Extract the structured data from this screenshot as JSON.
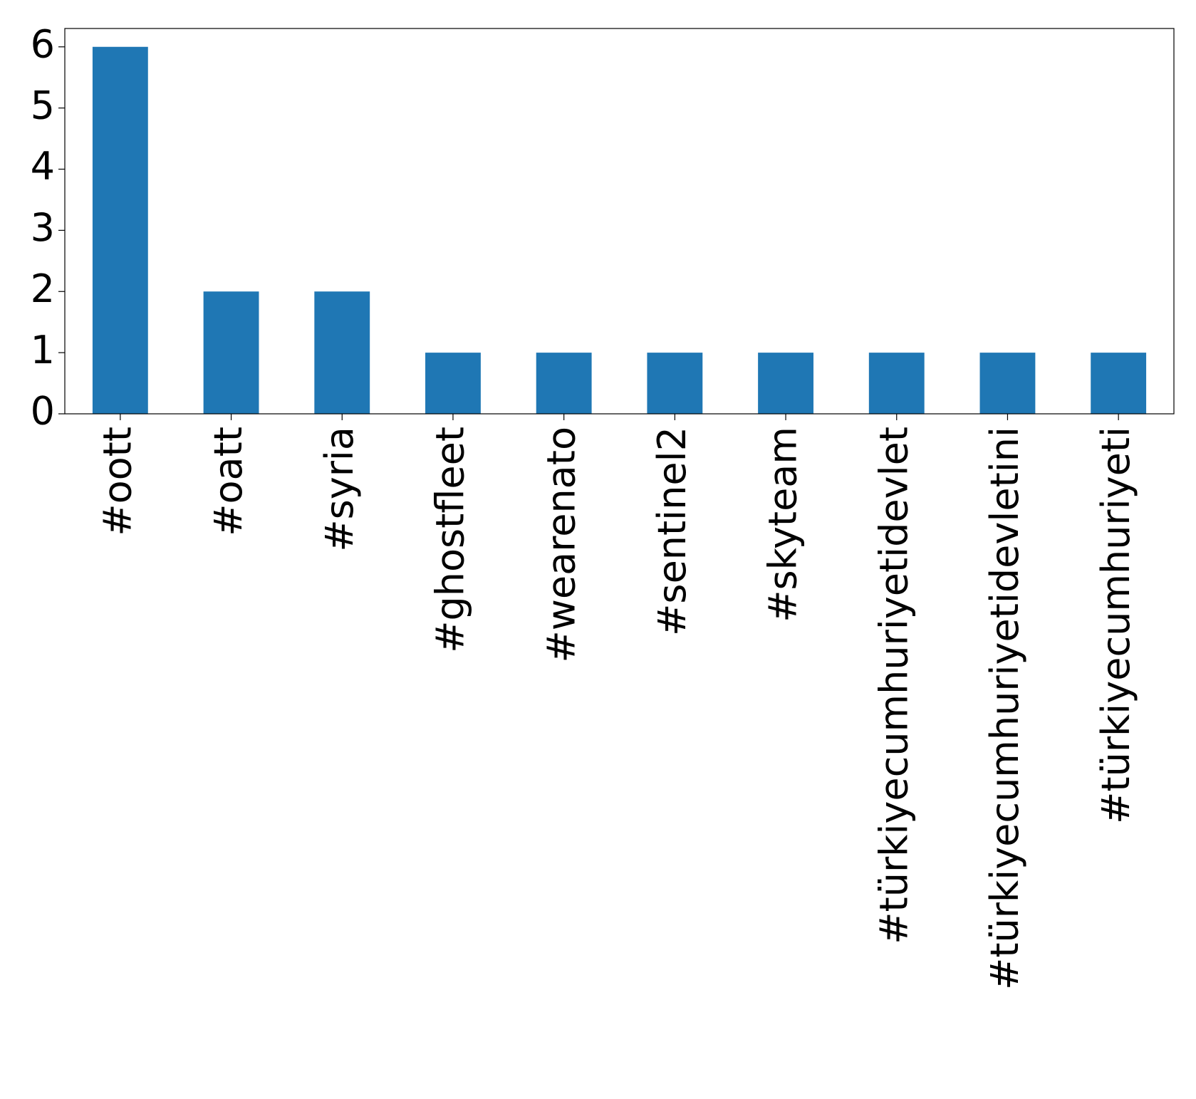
{
  "chart_data": {
    "type": "bar",
    "categories": [
      "#oott",
      "#oatt",
      "#syria",
      "#ghostfleet",
      "#wearenato",
      "#sentinel2",
      "#skyteam",
      "#türkiyecumhuriyetidevlet",
      "#türkiyecumhuriyetidevletini",
      "#türkiyecumhuriyeti"
    ],
    "values": [
      6,
      2,
      2,
      1,
      1,
      1,
      1,
      1,
      1,
      1
    ],
    "color": "#1f77b4",
    "ylim": [
      0,
      6.3
    ],
    "yticks": [
      0,
      1,
      2,
      3,
      4,
      5,
      6
    ],
    "grid": false
  }
}
